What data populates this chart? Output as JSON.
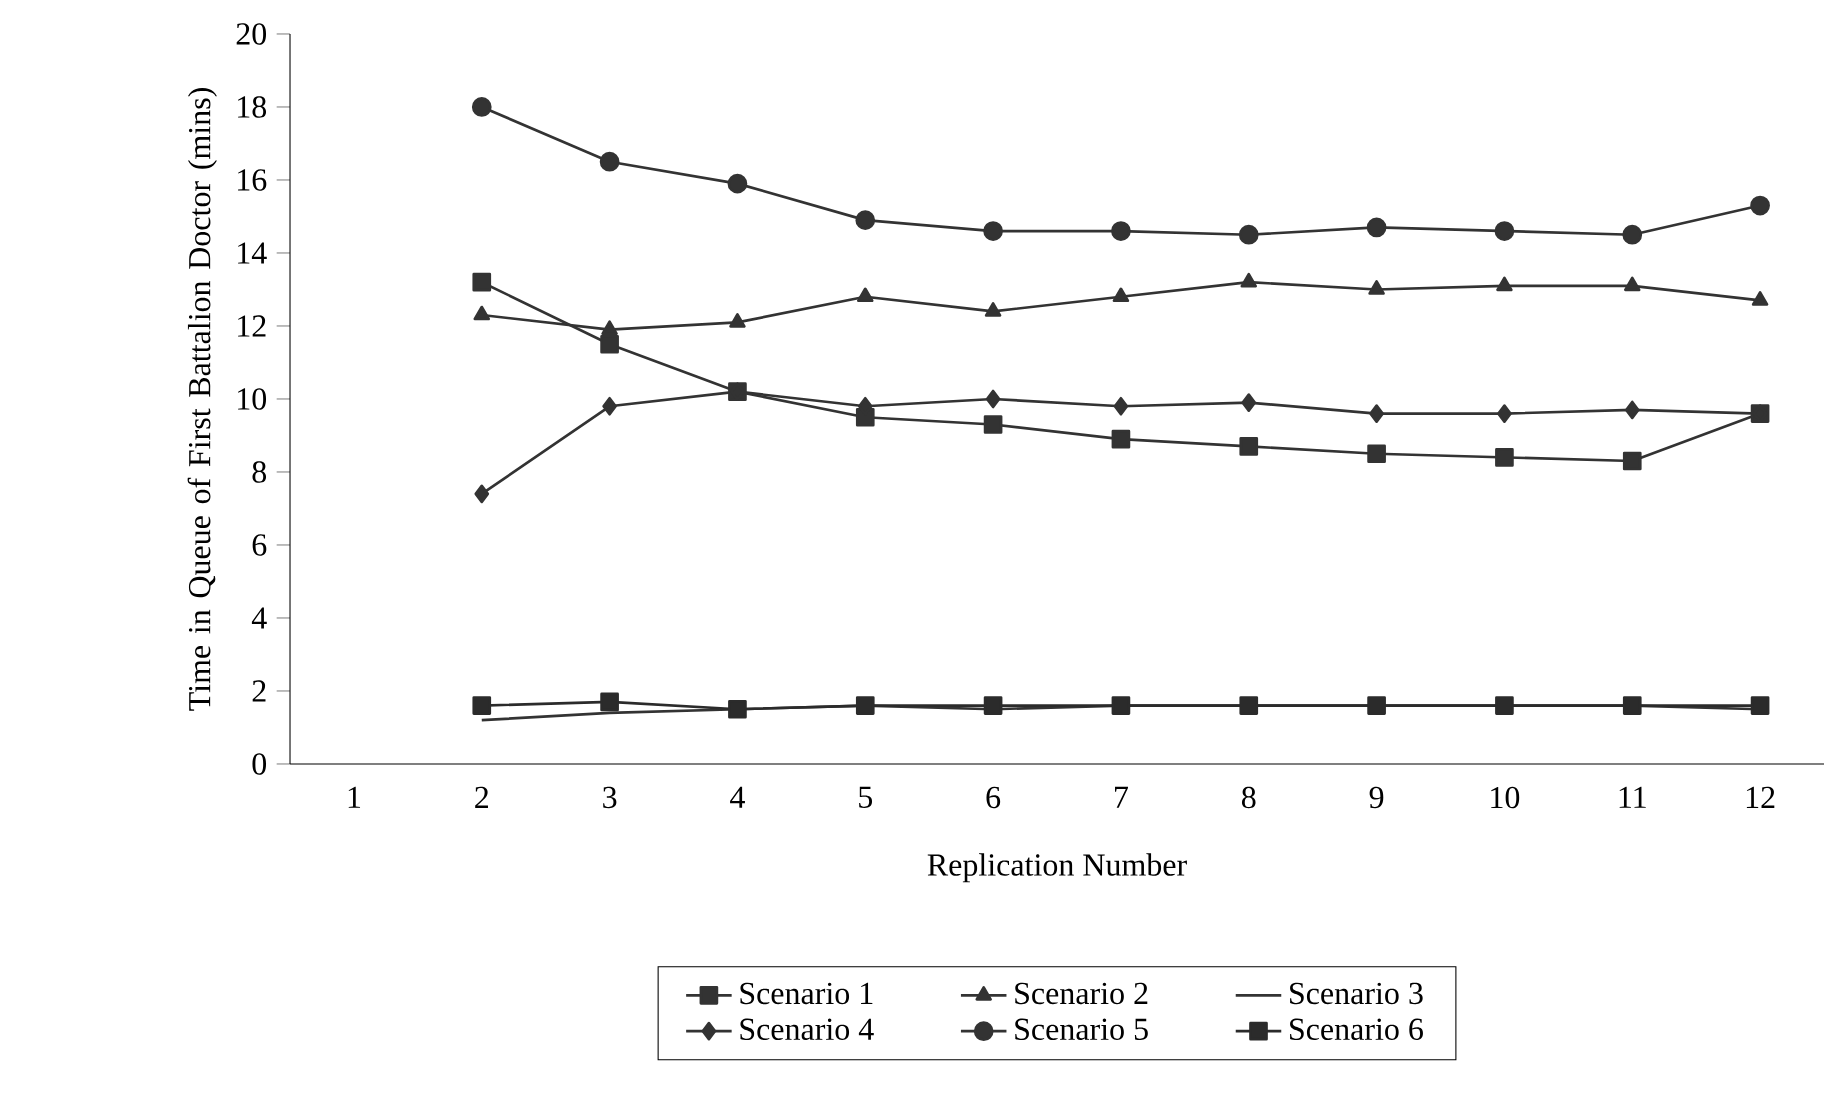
{
  "chart_data": {
    "type": "line",
    "xlabel": "Replication Number",
    "ylabel": "Time in Queue of First Battalion Doctor (mins)",
    "categories": [
      "1",
      "2",
      "3",
      "4",
      "5",
      "6",
      "7",
      "8",
      "9",
      "10",
      "11",
      "12"
    ],
    "ylim": [
      0,
      20
    ],
    "yticks": [
      0,
      2,
      4,
      6,
      8,
      10,
      12,
      14,
      16,
      18,
      20
    ],
    "legend": "bottom",
    "line_style": "solid",
    "series": [
      {
        "name": "Scenario 1",
        "color": "#333333",
        "marker": "square",
        "values": [
          null,
          13.2,
          11.5,
          10.2,
          9.5,
          9.3,
          8.9,
          8.7,
          8.5,
          8.4,
          8.3,
          9.6
        ]
      },
      {
        "name": "Scenario 2",
        "color": "#333333",
        "marker": "triangle",
        "values": [
          null,
          12.3,
          11.9,
          12.1,
          12.8,
          12.4,
          12.8,
          13.2,
          13.0,
          13.1,
          13.1,
          12.7
        ]
      },
      {
        "name": "Scenario 3",
        "color": "#333333",
        "marker": "none",
        "values": [
          null,
          1.2,
          1.4,
          1.5,
          1.6,
          1.5,
          1.6,
          1.6,
          1.6,
          1.6,
          1.6,
          1.5
        ]
      },
      {
        "name": "Scenario 4",
        "color": "#333333",
        "marker": "diamond",
        "values": [
          null,
          7.4,
          9.8,
          10.2,
          9.8,
          10.0,
          9.8,
          9.9,
          9.6,
          9.6,
          9.7,
          9.6
        ]
      },
      {
        "name": "Scenario 5",
        "color": "#333333",
        "marker": "circle",
        "values": [
          null,
          18.0,
          16.5,
          15.9,
          14.9,
          14.6,
          14.6,
          14.5,
          14.7,
          14.6,
          14.5,
          15.3
        ]
      },
      {
        "name": "Scenario 6",
        "color": "#2b2b2b",
        "marker": "square",
        "values": [
          null,
          1.6,
          1.7,
          1.5,
          1.6,
          1.6,
          1.6,
          1.6,
          1.6,
          1.6,
          1.6,
          1.6
        ]
      }
    ]
  }
}
